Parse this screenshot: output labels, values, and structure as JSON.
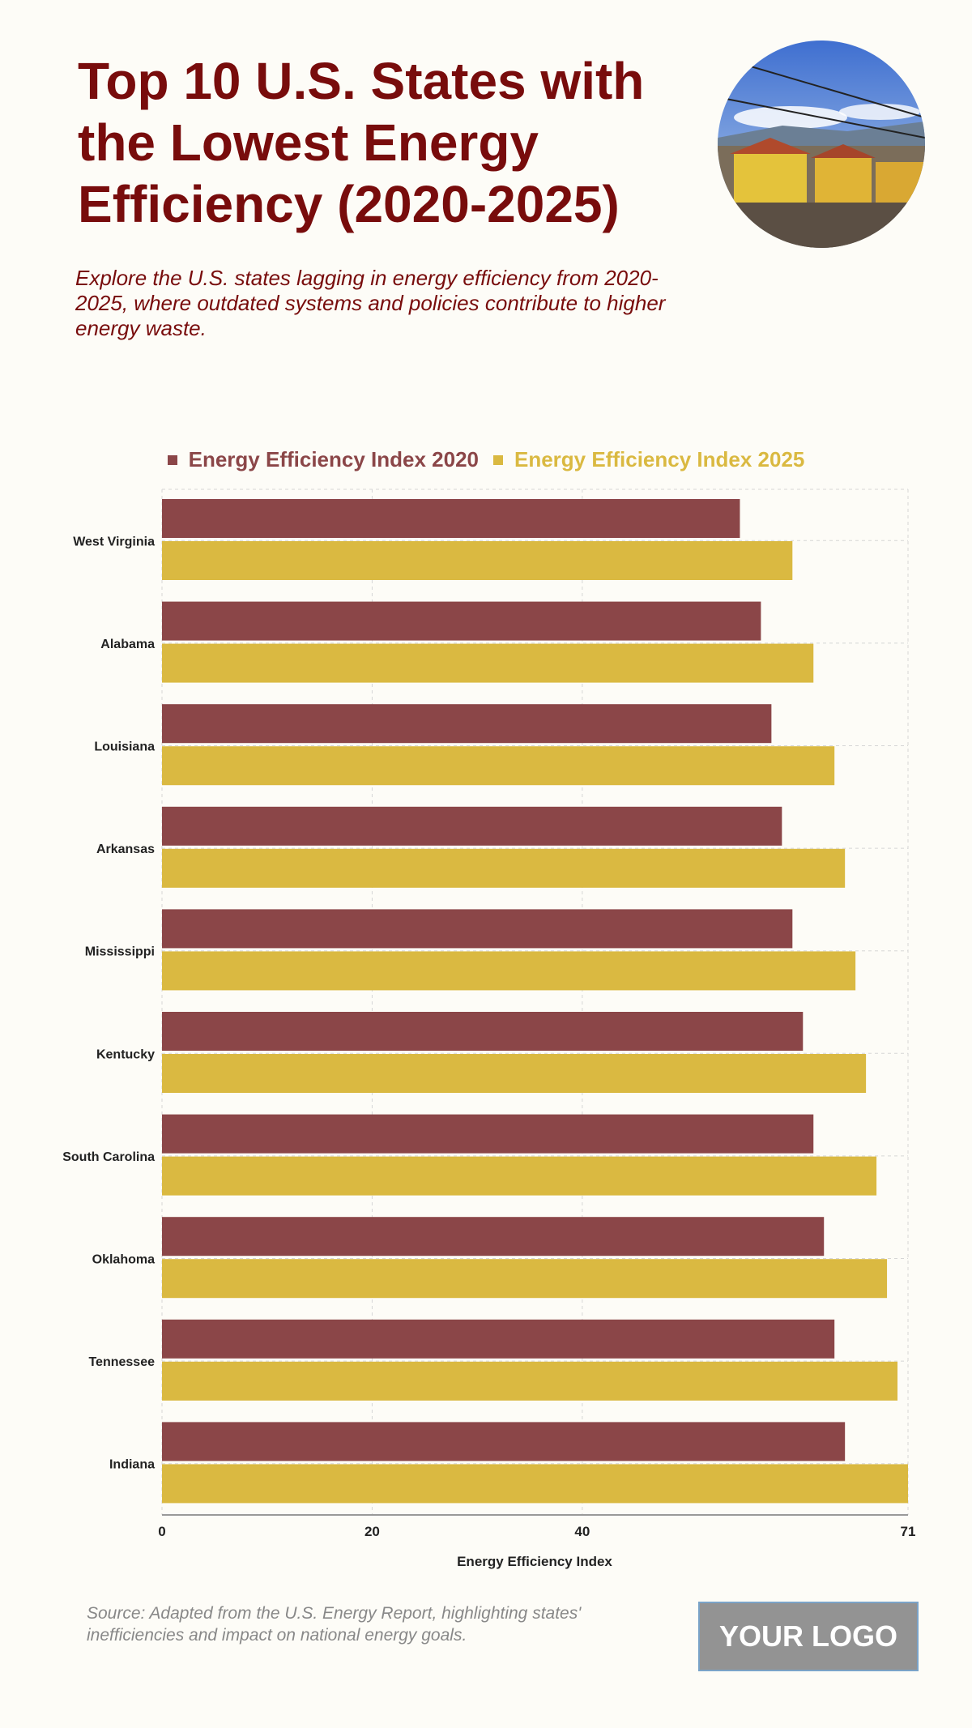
{
  "header": {
    "title": "Top 10 U.S. States with the Lowest Energy Efficiency (2020-2025)",
    "subtitle": "Explore the U.S. states lagging in energy efficiency from 2020-2025, where outdated systems and policies contribute to higher energy waste."
  },
  "footer": {
    "source": "Source: Adapted from the U.S. Energy Report, highlighting states' inefficiencies and impact on national energy goals.",
    "logo": "YOUR LOGO"
  },
  "colors": {
    "series2020": "#8b4648",
    "series2025": "#dab941",
    "title": "#780c0c"
  },
  "chart_data": {
    "type": "bar",
    "orientation": "horizontal",
    "categories": [
      "West Virginia",
      "Alabama",
      "Louisiana",
      "Arkansas",
      "Mississippi",
      "Kentucky",
      "South Carolina",
      "Oklahoma",
      "Tennessee",
      "Indiana"
    ],
    "series": [
      {
        "name": "Energy Efficiency Index 2020",
        "values": [
          55,
          57,
          58,
          59,
          60,
          61,
          62,
          63,
          64,
          65
        ]
      },
      {
        "name": "Energy Efficiency Index 2025",
        "values": [
          60,
          62,
          64,
          65,
          66,
          67,
          68,
          69,
          70,
          71
        ]
      }
    ],
    "xlabel": "Energy Efficiency Index",
    "ylabel": "",
    "xlim": [
      0,
      71
    ],
    "xticks": [
      "0",
      "20",
      "40",
      "71"
    ],
    "grid": true,
    "legend_position": "top-center"
  }
}
